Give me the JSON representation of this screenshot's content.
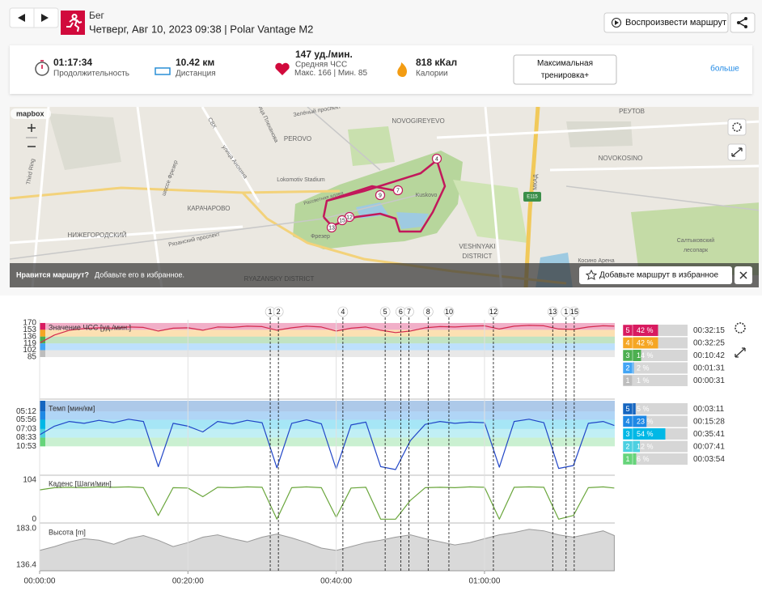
{
  "header": {
    "title": "Бег",
    "subtitle": "Четверг, Авг 10, 2023 09:38 | Polar Vantage M2",
    "play_button": "Воспроизвести маршрут"
  },
  "summary": {
    "duration": "01:17:34",
    "duration_label": "Продолжительность",
    "distance": "10.42 км",
    "distance_label": "Дистанция",
    "avg_hr": "147 уд./мин.",
    "avg_hr_label": "Средняя ЧСС",
    "hr_range": "Макс. 166 | Мин. 85",
    "calories": "818 кКал",
    "calories_label": "Калории",
    "training_button": "Максимальная тренировка+",
    "more": "больше"
  },
  "map": {
    "attribution": "mapbox",
    "labels": [
      "Зелёный проспект",
      "СВХ",
      "улица Плеханова",
      "улица Анохина",
      "шоссе Фрезер",
      "Third Ring",
      "PEROVO",
      "NOVOGIREYEVO",
      "РЕУТОВ",
      "NOVOKOSINO",
      "Lokomotiv Stadium",
      "Рассветная аллея",
      "Kuskovo",
      "КАРАЧАРОВО",
      "Фрезер",
      "НИЖЕГОРОДСКИЙ",
      "Рязанский проспект",
      "МКАД",
      "E115",
      "VESHNYAKI",
      "DISTRICT",
      "Салтыковский",
      "лесопарк",
      "Косино Арена",
      "RYAZANSKY DISTRICT"
    ],
    "markers": [
      "4",
      "7",
      "9",
      "12",
      "13",
      "15"
    ],
    "banner_question": "Нравится маршрут?",
    "banner_text": "Добавьте его в избранное.",
    "favorite_button": "Добавьте маршрут в избранное"
  },
  "laps": {
    "labels": [
      "1",
      "2",
      "4",
      "5",
      "6",
      "7",
      "8",
      "10",
      "12",
      "13",
      "1",
      "15"
    ],
    "x": [
      31.1,
      32.2,
      40.9,
      46.6,
      48.7,
      49.8,
      52.4,
      55.2,
      61.2,
      69.2,
      71.0,
      72.1
    ]
  },
  "chart_data": [
    {
      "type": "line",
      "title": "Значение ЧСС [уд./мин.]",
      "color": "#d42a4e",
      "x": [
        0,
        2,
        4,
        6,
        8,
        10,
        12,
        14,
        16,
        18,
        20,
        22,
        24,
        26,
        28,
        30,
        32,
        34,
        36,
        38,
        40,
        42,
        44,
        46,
        48,
        50,
        52,
        54,
        56,
        58,
        60,
        62,
        64,
        66,
        68,
        70,
        72,
        74,
        76,
        77.5
      ],
      "values": [
        120,
        140,
        152,
        156,
        158,
        157,
        160,
        159,
        150,
        157,
        158,
        152,
        160,
        159,
        162,
        161,
        152,
        158,
        162,
        160,
        150,
        157,
        160,
        152,
        146,
        150,
        158,
        161,
        160,
        162,
        163,
        155,
        162,
        164,
        163,
        155,
        154,
        160,
        163,
        162
      ],
      "xlim": [
        0,
        77.57
      ],
      "ylim": [
        -14,
        178
      ],
      "yticks": [
        170,
        153,
        136,
        119,
        102,
        85
      ],
      "zones": {
        "names": [
          "5",
          "4",
          "3",
          "2",
          "1"
        ],
        "values": [
          42,
          42,
          14,
          2,
          1
        ],
        "value_labels": [
          "42 %",
          "42 %",
          "14 %",
          "2 %",
          "1 %"
        ],
        "times": [
          "00:32:15",
          "00:32:25",
          "00:10:42",
          "00:01:31",
          "00:00:31"
        ],
        "colors": [
          "#d81b60",
          "#f5a623",
          "#4caf50",
          "#42a5f5",
          "#bdbdbd"
        ]
      }
    },
    {
      "type": "line",
      "title": "Темп [мин/км]",
      "color": "#2146c7",
      "y_scale": "inverse",
      "x": [
        0,
        2,
        4,
        6,
        8,
        10,
        12,
        14,
        16,
        18,
        20,
        22,
        24,
        26,
        28,
        30,
        32,
        34,
        36,
        38,
        40,
        42,
        44,
        46,
        48,
        50,
        52,
        54,
        56,
        58,
        60,
        62,
        64,
        66,
        68,
        70,
        72,
        74,
        76,
        77.5
      ],
      "values": [
        8.0,
        6.67,
        6.12,
        6.32,
        6.0,
        6.25,
        5.88,
        6.12,
        30,
        6.32,
        6.67,
        7.5,
        6.12,
        6.38,
        6.0,
        6.25,
        33.3,
        6.32,
        5.94,
        6.38,
        37.5,
        6.52,
        6.19,
        30,
        40,
        9.23,
        6.45,
        6.12,
        6.32,
        6.19,
        6.25,
        31.6,
        6.12,
        5.88,
        6.25,
        35.3,
        27.3,
        6.32,
        6.12,
        6.59
      ],
      "xlim": [
        0,
        77.57
      ],
      "ylim": [
        4.48,
        75
      ],
      "yticks": [
        {
          "value": 5.2,
          "label": "05:12"
        },
        {
          "value": 5.9333,
          "label": "05:56"
        },
        {
          "value": 7.05,
          "label": "07:03"
        },
        {
          "value": 8.55,
          "label": "08:33"
        },
        {
          "value": 10.8833,
          "label": "10:53"
        }
      ],
      "zones": {
        "names": [
          "5",
          "4",
          "3",
          "2",
          "1"
        ],
        "values": [
          5,
          23,
          54,
          12,
          6
        ],
        "value_labels": [
          "5 %",
          "23 %",
          "54 %",
          "12 %",
          "6 %"
        ],
        "times": [
          "00:03:11",
          "00:15:28",
          "00:35:41",
          "00:07:41",
          "00:03:54"
        ],
        "colors": [
          "#1565c0",
          "#1e88e5",
          "#00b8e6",
          "#4dd0e1",
          "#66d47a"
        ]
      }
    },
    {
      "type": "line",
      "title": "Каденс [Шаги/мин]",
      "color": "#6aa63c",
      "x": [
        0,
        2,
        4,
        6,
        8,
        10,
        12,
        14,
        16,
        18,
        20,
        22,
        24,
        26,
        28,
        30,
        32,
        34,
        36,
        38,
        40,
        42,
        44,
        46,
        48,
        50,
        52,
        54,
        56,
        58,
        60,
        62,
        64,
        66,
        68,
        70,
        72,
        74,
        76,
        77.5
      ],
      "values": [
        78,
        84,
        85,
        84,
        86,
        85,
        86,
        84,
        10,
        84,
        83,
        60,
        85,
        84,
        86,
        85,
        0,
        84,
        86,
        84,
        5,
        83,
        85,
        0,
        0,
        50,
        84,
        85,
        84,
        86,
        85,
        0,
        85,
        86,
        85,
        0,
        10,
        84,
        86,
        83
      ],
      "xlim": [
        0,
        77.57
      ],
      "ylim": [
        -8,
        115
      ],
      "yticks": [
        104,
        0
      ]
    },
    {
      "type": "area",
      "title": "Высота [m]",
      "color": "#d9d9d9",
      "x": [
        0,
        2,
        4,
        6,
        8,
        10,
        12,
        14,
        16,
        18,
        20,
        22,
        24,
        26,
        28,
        30,
        32,
        34,
        36,
        38,
        40,
        42,
        44,
        46,
        48,
        50,
        52,
        54,
        56,
        58,
        60,
        62,
        64,
        66,
        68,
        70,
        72,
        74,
        76,
        77.5
      ],
      "values": [
        155,
        160,
        166,
        170,
        168,
        163,
        170,
        174,
        168,
        160,
        165,
        172,
        175,
        170,
        166,
        172,
        176,
        171,
        165,
        158,
        155,
        160,
        165,
        168,
        172,
        175,
        170,
        166,
        162,
        165,
        170,
        175,
        178,
        182,
        180,
        175,
        172,
        176,
        180,
        174
      ],
      "xlim": [
        0,
        77.57
      ],
      "ylim": [
        129,
        188
      ],
      "yticks": [
        {
          "value": 183,
          "label": "183.0"
        },
        136.4
      ],
      "xticks": [
        {
          "value": 0,
          "label": "00:00:00"
        },
        {
          "value": 20,
          "label": "00:20:00"
        },
        {
          "value": 40,
          "label": "00:40:00"
        },
        {
          "value": 60,
          "label": "01:00:00"
        }
      ],
      "grid": true
    }
  ]
}
